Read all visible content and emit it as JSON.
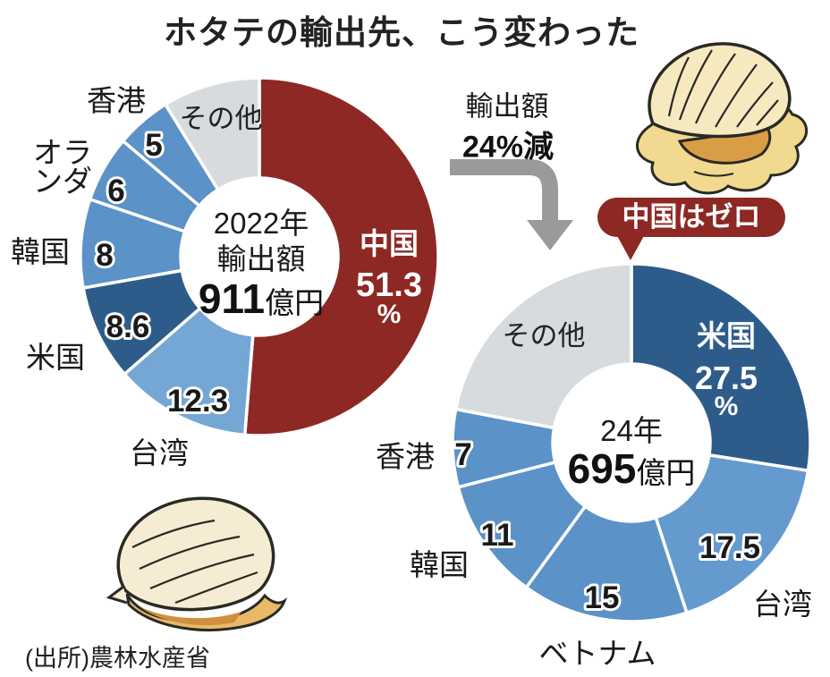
{
  "title": "ホタテの輸出先、こう変わった",
  "annotation": {
    "line1": "輸出額",
    "line2": "24%減"
  },
  "badge": {
    "label": "中国はゼロ"
  },
  "source": "(出所)農林水産省",
  "icons": [
    "scallop-open-illustration",
    "scallop-closed-illustration",
    "arrow-down-icon"
  ],
  "colors": {
    "china_red": "#8d2824",
    "us_navy": "#2e5c8a",
    "steel_blue": "#5b92c7",
    "light_blue": "#74a7d4",
    "other_gray": "#d8dbde",
    "arrow_gray": "#9a9a9a",
    "text_black": "#1a1a1a"
  },
  "chart_data": [
    {
      "type": "pie",
      "subtype": "donut",
      "title": "2022年輸出額 911億円",
      "center_lines": [
        "2022年",
        "輸出額"
      ],
      "center_value": "911",
      "center_unit": "億円",
      "value_unit": "%",
      "slices": [
        {
          "label": "中国",
          "value": 51.3,
          "display": "51.3",
          "percent_sign": true,
          "color": "#8d2824",
          "label_inside": true
        },
        {
          "label": "台湾",
          "value": 12.3,
          "display": "12.3",
          "color": "#74a7d4"
        },
        {
          "label": "米国",
          "value": 8.6,
          "display": "8.6",
          "color": "#2e5c8a"
        },
        {
          "label": "韓国",
          "value": 8,
          "display": "8",
          "color": "#5b92c7"
        },
        {
          "label": "オランダ",
          "value": 6,
          "display": "6",
          "color": "#5b92c7"
        },
        {
          "label": "香港",
          "value": 5,
          "display": "5",
          "color": "#5b92c7"
        },
        {
          "label": "その他",
          "value": 8.8,
          "display": "",
          "color": "#d8dbde",
          "label_inside": true
        }
      ]
    },
    {
      "type": "pie",
      "subtype": "donut",
      "title": "24年 695億円",
      "center_lines": [
        "24年"
      ],
      "center_value": "695",
      "center_unit": "億円",
      "value_unit": "%",
      "slices": [
        {
          "label": "米国",
          "value": 27.5,
          "display": "27.5",
          "percent_sign": true,
          "color": "#2e5c8a",
          "label_inside": true
        },
        {
          "label": "台湾",
          "value": 17.5,
          "display": "17.5",
          "color": "#649ace"
        },
        {
          "label": "ベトナム",
          "value": 15,
          "display": "15",
          "color": "#5b92c7"
        },
        {
          "label": "韓国",
          "value": 11,
          "display": "11",
          "color": "#5b92c7"
        },
        {
          "label": "香港",
          "value": 7,
          "display": "7",
          "color": "#5b92c7"
        },
        {
          "label": "その他",
          "value": 22,
          "display": "",
          "color": "#d8dbde",
          "label_inside": true
        }
      ]
    }
  ]
}
